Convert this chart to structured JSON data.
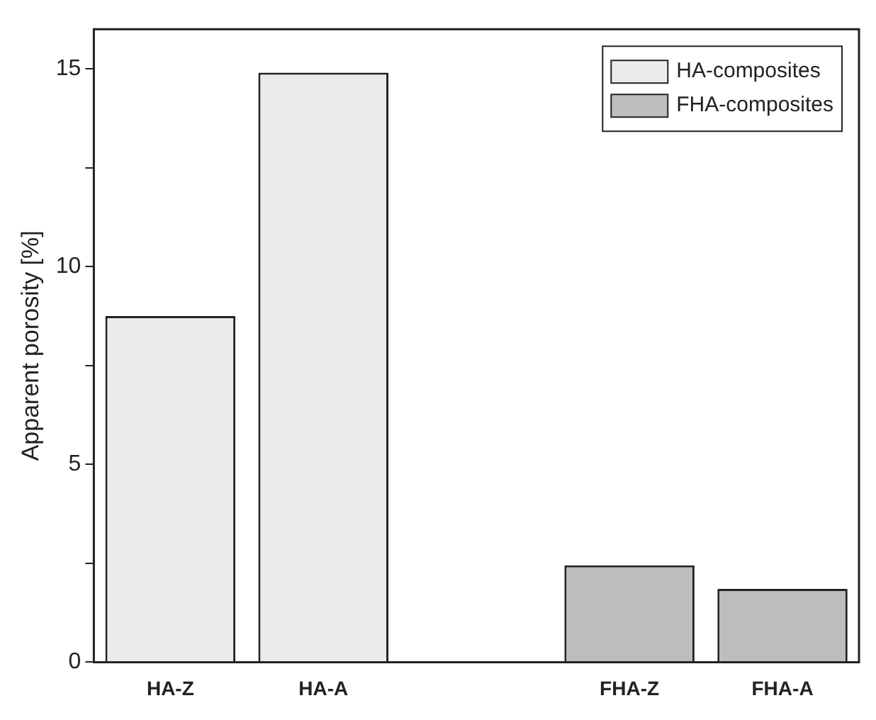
{
  "chart_data": {
    "type": "bar",
    "ylabel": "Apparent porosity [%]",
    "categories": [
      "HA-Z",
      "HA-A",
      null,
      "FHA-Z",
      "FHA-A"
    ],
    "series": [
      {
        "name": "HA-composites",
        "color": "#ebebeb",
        "values": [
          8.75,
          14.9,
          null,
          null,
          null
        ]
      },
      {
        "name": "FHA-composites",
        "color": "#bdbdbd",
        "values": [
          null,
          null,
          null,
          2.45,
          1.85
        ]
      }
    ],
    "ylim": [
      0,
      16
    ],
    "yticks": [
      0,
      {
        "value": 2.5,
        "label": null
      },
      5,
      {
        "value": 7.5,
        "label": null
      },
      10,
      {
        "value": 12.5,
        "label": null
      },
      15
    ],
    "grid": false,
    "legend": "top right"
  }
}
